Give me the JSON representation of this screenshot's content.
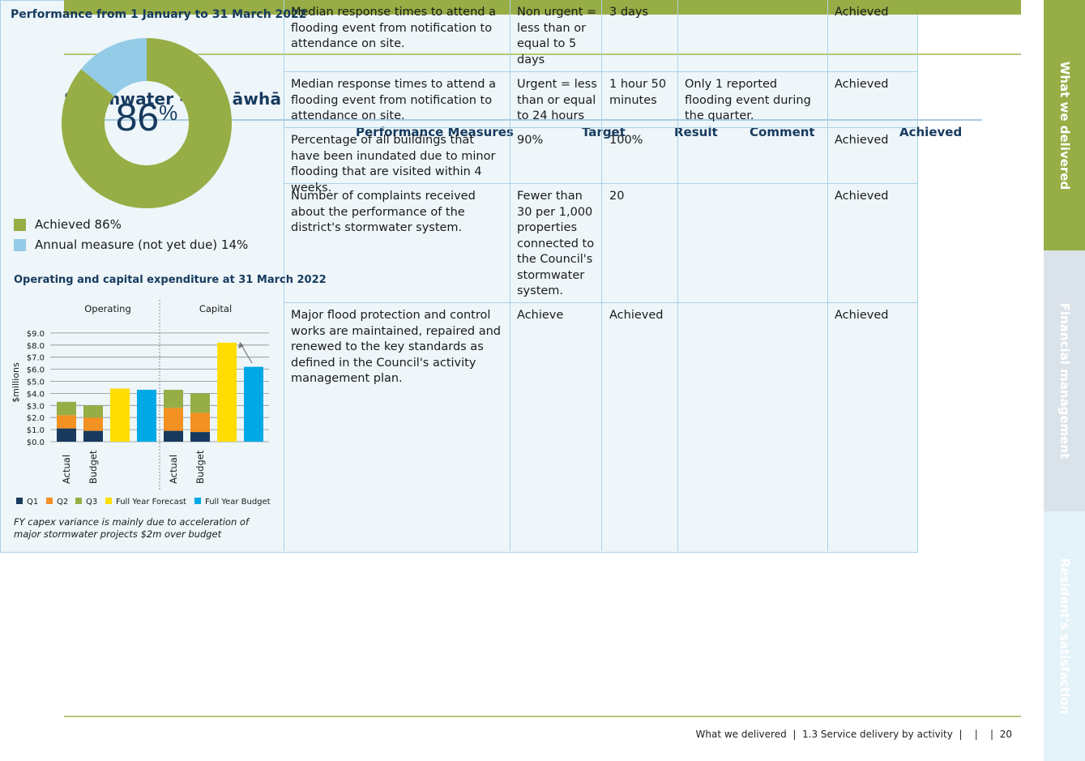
{
  "page": {
    "title": "Stormwater - Wai āwhā",
    "footer": "What we delivered  |  1.3 Service delivery by activity  |    |    |  20"
  },
  "side_tabs": [
    {
      "label": "What we delivered",
      "color": "#97ad45"
    },
    {
      "label": "Financial management",
      "color": "#dbe3ea"
    },
    {
      "label": "Resident's satisfaction",
      "color": "#e4f2f9"
    }
  ],
  "table": {
    "headers": [
      "Performance Measures",
      "Target",
      "Result",
      "Comment",
      "Achieved"
    ],
    "rows": [
      {
        "measure": "Median response times to attend a flooding event from notification to attendance on site.",
        "target": "Non urgent = less than or equal to 5 days",
        "result": "3 days",
        "comment": "",
        "achieved": "Achieved"
      },
      {
        "measure": "Median response times to attend a flooding event from notification to attendance on site.",
        "target": "Urgent = less than or equal to 24 hours",
        "result": "1 hour 50 minutes",
        "comment": "Only 1 reported flooding event during the quarter.",
        "achieved": "Achieved"
      },
      {
        "measure": "Percentage of all buildings that have been inundated due to minor flooding that are visited within 4 weeks.",
        "target": "90%",
        "result": "100%",
        "comment": "",
        "achieved": "Achieved"
      },
      {
        "measure": "Number of complaints received about the performance of the district's stormwater system.",
        "target": "Fewer than 30 per 1,000 properties connected to the Council's stormwater system.",
        "result": "20",
        "comment": "",
        "achieved": "Achieved"
      },
      {
        "measure": "Major flood protection and control works are maintained, repaired and renewed to the key standards as defined in the Council's activity management plan.",
        "target": "Achieve",
        "result": "Achieved",
        "comment": "",
        "achieved": "Achieved"
      }
    ]
  },
  "performance": {
    "title": "Performance from 1 January to 31 March 2022",
    "center_value": "86",
    "center_unit": "%",
    "legend": [
      {
        "label": "Achieved 86%",
        "color": "#97ad45"
      },
      {
        "label": "Annual measure (not yet due) 14%",
        "color": "#94cbe6"
      }
    ]
  },
  "expenditure": {
    "title": "Operating and capital expenditure at 31 March 2022",
    "note": "FY capex variance is mainly due to acceleration of major stormwater projects $2m over budget"
  },
  "chart_data": [
    {
      "type": "pie",
      "title": "Performance from 1 January to 31 March 2022",
      "labels": [
        "Achieved",
        "Annual measure (not yet due)"
      ],
      "values": [
        86,
        14
      ],
      "colors": [
        "#97ad45",
        "#94cbe6"
      ],
      "donut": true
    },
    {
      "type": "bar",
      "stacked": true,
      "title": "Operating and capital expenditure at 31 March 2022",
      "ylabel": "$millions",
      "ylim": [
        0,
        9
      ],
      "yticks": [
        "$0.0",
        "$1.0",
        "$2.0",
        "$3.0",
        "$4.0",
        "$5.0",
        "$6.0",
        "$7.0",
        "$8.0",
        "$9.0"
      ],
      "groups": [
        "Operating",
        "Capital"
      ],
      "categories": [
        "Actual",
        "Budget",
        "",
        "",
        "Actual",
        "Budget",
        "",
        ""
      ],
      "series": [
        {
          "name": "Q1",
          "color": "#173a5e",
          "values": [
            1.1,
            0.9,
            0,
            0,
            0.9,
            0.8,
            0,
            0
          ]
        },
        {
          "name": "Q2",
          "color": "#f39122",
          "values": [
            1.1,
            1.1,
            0,
            0,
            1.9,
            1.6,
            0,
            0
          ]
        },
        {
          "name": "Q3",
          "color": "#97ad45",
          "values": [
            1.1,
            1.0,
            0,
            0,
            1.5,
            1.6,
            0,
            0
          ]
        },
        {
          "name": "Full Year Forecast",
          "color": "#ffdd00",
          "values": [
            0,
            0,
            4.4,
            0,
            0,
            0,
            8.2,
            0
          ]
        },
        {
          "name": "Full Year Budget",
          "color": "#00a9e6",
          "values": [
            0,
            0,
            0,
            4.3,
            0,
            0,
            0,
            6.2
          ]
        }
      ]
    }
  ]
}
